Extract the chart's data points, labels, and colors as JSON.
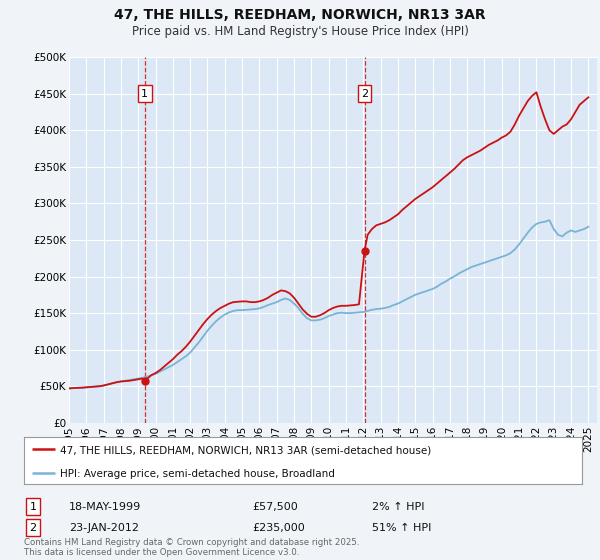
{
  "title": "47, THE HILLS, REEDHAM, NORWICH, NR13 3AR",
  "subtitle": "Price paid vs. HM Land Registry's House Price Index (HPI)",
  "bg_color": "#f0f4f8",
  "plot_bg_color": "#dce8f5",
  "grid_color": "#ffffff",
  "hpi_color": "#7ab3d4",
  "price_color": "#cc1111",
  "marker_color": "#cc1111",
  "x_start": 1995.0,
  "x_end": 2025.5,
  "y_min": 0,
  "y_max": 500000,
  "y_ticks": [
    0,
    50000,
    100000,
    150000,
    200000,
    250000,
    300000,
    350000,
    400000,
    450000,
    500000
  ],
  "y_labels": [
    "£0",
    "£50K",
    "£100K",
    "£150K",
    "£200K",
    "£250K",
    "£300K",
    "£350K",
    "£400K",
    "£450K",
    "£500K"
  ],
  "x_ticks": [
    1995,
    1996,
    1997,
    1998,
    1999,
    2000,
    2001,
    2002,
    2003,
    2004,
    2005,
    2006,
    2007,
    2008,
    2009,
    2010,
    2011,
    2012,
    2013,
    2014,
    2015,
    2016,
    2017,
    2018,
    2019,
    2020,
    2021,
    2022,
    2023,
    2024,
    2025
  ],
  "sale1_x": 1999.38,
  "sale1_y": 57500,
  "sale1_label": "1",
  "sale1_date": "18-MAY-1999",
  "sale1_price": "£57,500",
  "sale1_pct": "2% ↑ HPI",
  "sale2_x": 2012.07,
  "sale2_y": 235000,
  "sale2_label": "2",
  "sale2_date": "23-JAN-2012",
  "sale2_price": "£235,000",
  "sale2_pct": "51% ↑ HPI",
  "legend_line1": "47, THE HILLS, REEDHAM, NORWICH, NR13 3AR (semi-detached house)",
  "legend_line2": "HPI: Average price, semi-detached house, Broadland",
  "footnote": "Contains HM Land Registry data © Crown copyright and database right 2025.\nThis data is licensed under the Open Government Licence v3.0.",
  "hpi_data_x": [
    1995.0,
    1995.25,
    1995.5,
    1995.75,
    1996.0,
    1996.25,
    1996.5,
    1996.75,
    1997.0,
    1997.25,
    1997.5,
    1997.75,
    1998.0,
    1998.25,
    1998.5,
    1998.75,
    1999.0,
    1999.25,
    1999.5,
    1999.75,
    2000.0,
    2000.25,
    2000.5,
    2000.75,
    2001.0,
    2001.25,
    2001.5,
    2001.75,
    2002.0,
    2002.25,
    2002.5,
    2002.75,
    2003.0,
    2003.25,
    2003.5,
    2003.75,
    2004.0,
    2004.25,
    2004.5,
    2004.75,
    2005.0,
    2005.25,
    2005.5,
    2005.75,
    2006.0,
    2006.25,
    2006.5,
    2006.75,
    2007.0,
    2007.25,
    2007.5,
    2007.75,
    2008.0,
    2008.25,
    2008.5,
    2008.75,
    2009.0,
    2009.25,
    2009.5,
    2009.75,
    2010.0,
    2010.25,
    2010.5,
    2010.75,
    2011.0,
    2011.25,
    2011.5,
    2011.75,
    2012.0,
    2012.25,
    2012.5,
    2012.75,
    2013.0,
    2013.25,
    2013.5,
    2013.75,
    2014.0,
    2014.25,
    2014.5,
    2014.75,
    2015.0,
    2015.25,
    2015.5,
    2015.75,
    2016.0,
    2016.25,
    2016.5,
    2016.75,
    2017.0,
    2017.25,
    2017.5,
    2017.75,
    2018.0,
    2018.25,
    2018.5,
    2018.75,
    2019.0,
    2019.25,
    2019.5,
    2019.75,
    2020.0,
    2020.25,
    2020.5,
    2020.75,
    2021.0,
    2021.25,
    2021.5,
    2021.75,
    2022.0,
    2022.25,
    2022.5,
    2022.75,
    2023.0,
    2023.25,
    2023.5,
    2023.75,
    2024.0,
    2024.25,
    2024.5,
    2024.75,
    2025.0
  ],
  "hpi_data_y": [
    47000,
    47500,
    47800,
    48000,
    48500,
    49000,
    49500,
    50000,
    51000,
    52500,
    54000,
    55500,
    56500,
    57500,
    58500,
    59500,
    60500,
    61500,
    63000,
    65000,
    67000,
    70000,
    73000,
    76000,
    79000,
    83000,
    87000,
    91000,
    96000,
    103000,
    110000,
    118000,
    126000,
    133000,
    139000,
    144000,
    148000,
    151000,
    153000,
    154000,
    154000,
    154500,
    155000,
    155500,
    156500,
    158500,
    161000,
    163000,
    165000,
    168000,
    170000,
    168000,
    163000,
    157000,
    149000,
    143000,
    140000,
    140000,
    141000,
    143000,
    146000,
    148000,
    150000,
    150500,
    150000,
    150000,
    150500,
    151000,
    151500,
    153000,
    154500,
    155500,
    156000,
    157000,
    158500,
    161000,
    163000,
    166000,
    169000,
    172000,
    175000,
    177000,
    179000,
    181000,
    183000,
    186000,
    190000,
    193000,
    197000,
    200000,
    204000,
    207000,
    210000,
    213000,
    215000,
    217000,
    219000,
    221000,
    223000,
    225000,
    227000,
    229000,
    232000,
    237000,
    244000,
    252000,
    260000,
    267000,
    272000,
    274000,
    275000,
    277000,
    265000,
    257000,
    255000,
    260000,
    263000,
    261000,
    263000,
    265000,
    268000
  ],
  "price_data_x": [
    1995.0,
    1995.25,
    1995.5,
    1995.75,
    1996.0,
    1996.25,
    1996.5,
    1996.75,
    1997.0,
    1997.25,
    1997.5,
    1997.75,
    1998.0,
    1998.25,
    1998.5,
    1998.75,
    1999.0,
    1999.25,
    1999.38,
    1999.75,
    2000.0,
    2000.25,
    2000.5,
    2000.75,
    2001.0,
    2001.25,
    2001.5,
    2001.75,
    2002.0,
    2002.25,
    2002.5,
    2002.75,
    2003.0,
    2003.25,
    2003.5,
    2003.75,
    2004.0,
    2004.25,
    2004.5,
    2004.75,
    2005.0,
    2005.25,
    2005.5,
    2005.75,
    2006.0,
    2006.25,
    2006.5,
    2006.75,
    2007.0,
    2007.25,
    2007.5,
    2007.75,
    2008.0,
    2008.25,
    2008.5,
    2008.75,
    2009.0,
    2009.25,
    2009.5,
    2009.75,
    2010.0,
    2010.25,
    2010.5,
    2010.75,
    2011.0,
    2011.25,
    2011.5,
    2011.75,
    2012.07,
    2012.25,
    2012.5,
    2012.75,
    2013.0,
    2013.25,
    2013.5,
    2013.75,
    2014.0,
    2014.25,
    2014.5,
    2014.75,
    2015.0,
    2015.25,
    2015.5,
    2015.75,
    2016.0,
    2016.25,
    2016.5,
    2016.75,
    2017.0,
    2017.25,
    2017.5,
    2017.75,
    2018.0,
    2018.25,
    2018.5,
    2018.75,
    2019.0,
    2019.25,
    2019.5,
    2019.75,
    2020.0,
    2020.25,
    2020.5,
    2020.75,
    2021.0,
    2021.25,
    2021.5,
    2021.75,
    2022.0,
    2022.25,
    2022.5,
    2022.75,
    2023.0,
    2023.25,
    2023.5,
    2023.75,
    2024.0,
    2024.25,
    2024.5,
    2024.75,
    2025.0
  ],
  "price_data_y": [
    47000,
    47500,
    47800,
    48000,
    48500,
    49000,
    49500,
    50000,
    51000,
    52500,
    54000,
    55500,
    56500,
    57000,
    57500,
    58500,
    59500,
    60500,
    57500,
    65000,
    68000,
    72000,
    77000,
    82000,
    87000,
    93000,
    98000,
    104000,
    111000,
    119000,
    127000,
    135000,
    142000,
    148000,
    153000,
    157000,
    160000,
    163000,
    165000,
    165500,
    166000,
    166000,
    165000,
    165000,
    166000,
    168000,
    171000,
    175000,
    178000,
    181000,
    180000,
    177000,
    171000,
    163000,
    155000,
    149000,
    145000,
    145000,
    147000,
    150000,
    154000,
    157000,
    159000,
    160000,
    160000,
    160500,
    161000,
    162000,
    235000,
    257000,
    265000,
    270000,
    272000,
    274000,
    277000,
    281000,
    285000,
    291000,
    296000,
    301000,
    306000,
    310000,
    314000,
    318000,
    322000,
    327000,
    332000,
    337000,
    342000,
    347000,
    353000,
    359000,
    363000,
    366000,
    369000,
    372000,
    376000,
    380000,
    383000,
    386000,
    390000,
    393000,
    398000,
    408000,
    420000,
    430000,
    440000,
    447000,
    452000,
    432000,
    415000,
    400000,
    395000,
    400000,
    405000,
    408000,
    415000,
    425000,
    435000,
    440000,
    445000
  ]
}
